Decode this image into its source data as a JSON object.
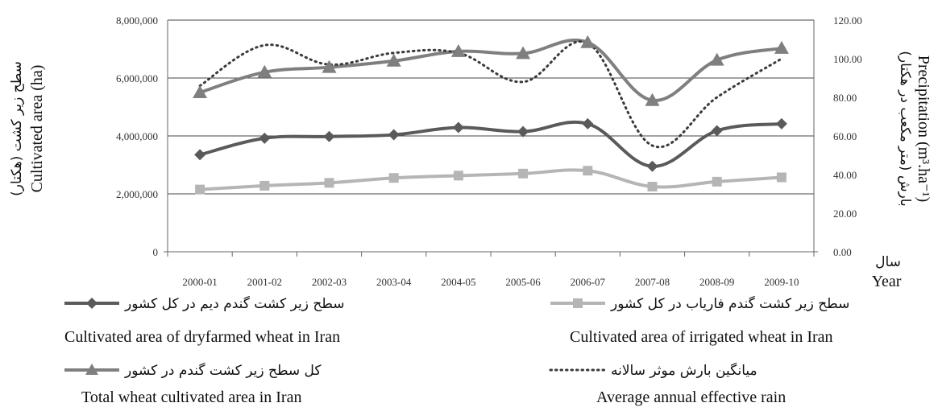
{
  "chart_data": {
    "type": "line",
    "categories": [
      "2000-01",
      "2001-02",
      "2002-03",
      "2003-04",
      "2004-05",
      "2005-06",
      "2006-07",
      "2007-08",
      "2008-09",
      "2009-10"
    ],
    "x_axis_label_fa": "سال",
    "x_axis_label_en": "Year",
    "y_left": {
      "label_fa": "سطح زیر کشت (هکتار)",
      "label_en": "Cultivated area (ha)",
      "ylim": [
        0,
        8000000
      ],
      "ticks": [
        "0",
        "2,000,000",
        "4,000,000",
        "6,000,000",
        "8,000,000"
      ]
    },
    "y_right": {
      "label_fa": "بارش (متر مکعب در هکتار)",
      "label_en": "Precipitation (m³.ha⁻¹)",
      "ylim": [
        0,
        120
      ],
      "ticks": [
        "0.00",
        "20.00",
        "40.00",
        "60.00",
        "80.00",
        "100.00",
        "120.00"
      ]
    },
    "grid": "horizontal",
    "legend_position": "bottom",
    "series": [
      {
        "name_fa": "سطح زیر کشت گندم دیم در کل کشور",
        "name_en": "Cultivated area of dryfarmed wheat in Iran",
        "axis": "left",
        "marker": "diamond",
        "style": "solid",
        "color": "#5a5a5a",
        "values": [
          3350000,
          3920000,
          3980000,
          4040000,
          4290000,
          4150000,
          4420000,
          2950000,
          4180000,
          4420000
        ]
      },
      {
        "name_fa": "سطح زیر کشت گندم فاریاب در کل کشور",
        "name_en": "Cultivated area of irrigated wheat in Iran",
        "axis": "left",
        "marker": "square",
        "style": "solid",
        "color": "#b5b5b5",
        "values": [
          2150000,
          2280000,
          2380000,
          2550000,
          2630000,
          2700000,
          2800000,
          2250000,
          2420000,
          2570000
        ]
      },
      {
        "name_fa": "کل سطح زیر کشت گندم در کشور",
        "name_en": "Total wheat cultivated area in Iran",
        "axis": "left",
        "marker": "triangle",
        "style": "solid",
        "color": "#7f7f7f",
        "values": [
          5500000,
          6200000,
          6370000,
          6590000,
          6920000,
          6850000,
          7230000,
          5230000,
          6620000,
          7030000
        ]
      },
      {
        "name_fa": "میانگین بارش موثر سالانه",
        "name_en": "Average annual effective rain",
        "axis": "right",
        "marker": "none",
        "style": "dotted",
        "color": "#3a3a3a",
        "values": [
          86,
          107,
          97,
          103,
          103,
          88,
          108,
          55,
          80,
          100
        ]
      }
    ]
  }
}
